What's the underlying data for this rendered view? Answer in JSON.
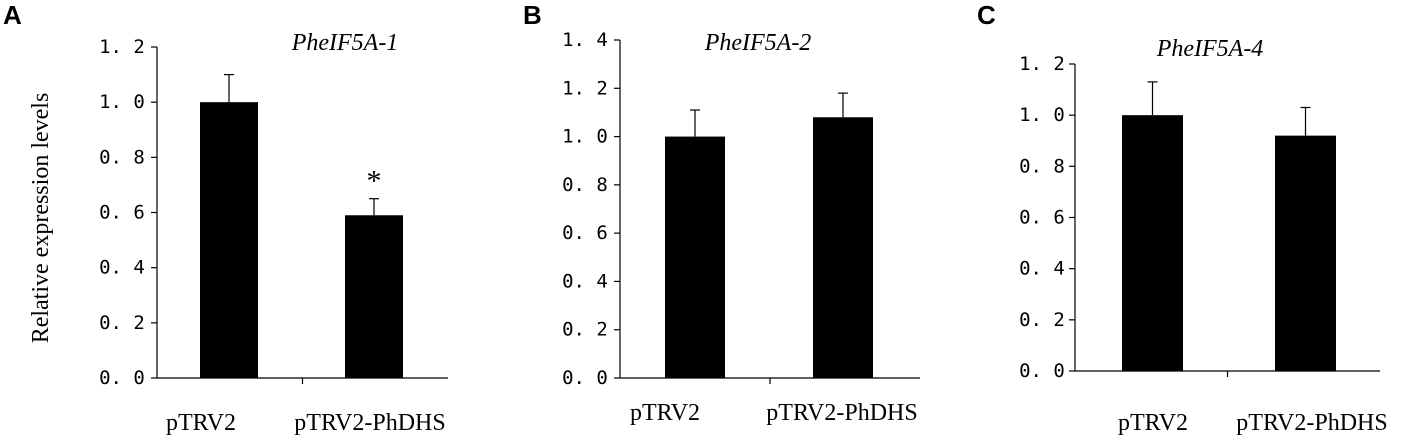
{
  "figure": {
    "y_axis_label": "Relative expression levels"
  },
  "chart_data": [
    {
      "type": "bar",
      "panel": "A",
      "title": "PheIF5A-1",
      "ylabel": "Relative expression levels",
      "categories": [
        "pTRV2",
        "pTRV2-PhDHS"
      ],
      "values": [
        1.0,
        0.59
      ],
      "errors": [
        0.1,
        0.06
      ],
      "annotations": [
        "",
        "*"
      ],
      "ylim": [
        0,
        1.2
      ],
      "yticks": [
        0.0,
        0.2,
        0.4,
        0.6,
        0.8,
        1.0,
        1.2
      ],
      "ytick_labels": [
        "0. 0",
        "0. 2",
        "0. 4",
        "0. 6",
        "0. 8",
        "1. 0",
        "1. 2"
      ],
      "bar_color": "#000000",
      "grid": false
    },
    {
      "type": "bar",
      "panel": "B",
      "title": "PheIF5A-2",
      "categories": [
        "pTRV2",
        "pTRV2-PhDHS"
      ],
      "values": [
        1.0,
        1.08
      ],
      "errors": [
        0.11,
        0.1
      ],
      "annotations": [
        "",
        ""
      ],
      "ylim": [
        0,
        1.4
      ],
      "yticks": [
        0.0,
        0.2,
        0.4,
        0.6,
        0.8,
        1.0,
        1.2,
        1.4
      ],
      "ytick_labels": [
        "0. 0",
        "0. 2",
        "0. 4",
        "0. 6",
        "0. 8",
        "1. 0",
        "1. 2",
        "1. 4"
      ],
      "bar_color": "#000000",
      "grid": false
    },
    {
      "type": "bar",
      "panel": "C",
      "title": "PheIF5A-4",
      "categories": [
        "pTRV2",
        "pTRV2-PhDHS"
      ],
      "values": [
        1.0,
        0.92
      ],
      "errors": [
        0.13,
        0.11
      ],
      "annotations": [
        "",
        ""
      ],
      "ylim": [
        0,
        1.2
      ],
      "yticks": [
        0.0,
        0.2,
        0.4,
        0.6,
        0.8,
        1.0,
        1.2
      ],
      "ytick_labels": [
        "0. 0",
        "0. 2",
        "0. 4",
        "0. 6",
        "0. 8",
        "1. 0",
        "1. 2"
      ],
      "bar_color": "#000000",
      "grid": false
    }
  ]
}
